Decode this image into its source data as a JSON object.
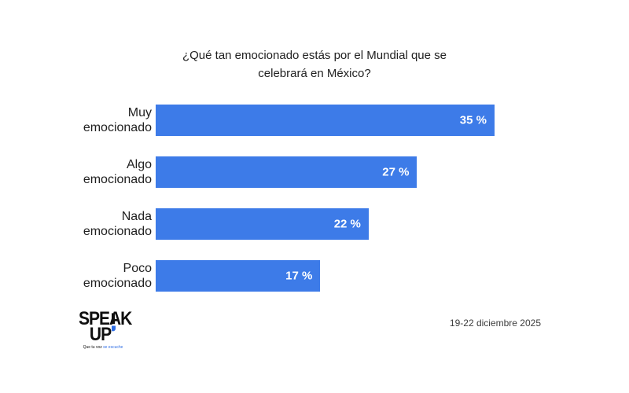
{
  "chart_data": {
    "type": "bar",
    "orientation": "horizontal",
    "title": "¿Qué tan emocionado estás por el Mundial que se celebrará en México?",
    "categories": [
      "Muy emocionado",
      "Algo emocionado",
      "Nada emocionado",
      "Poco emocionado"
    ],
    "values": [
      35,
      27,
      22,
      17
    ],
    "value_labels": [
      "35 %",
      "27 %",
      "22 %",
      "17 %"
    ],
    "bar_color": "#3d7be8",
    "value_label_color": "#ffffff",
    "xlim": [
      0,
      35
    ],
    "grid": "off",
    "legend": "none"
  },
  "footer": {
    "logo": {
      "line1": "SPEAK",
      "line2": "UP",
      "tagline_black": "Que tu voz ",
      "tagline_blue": "se escuche"
    },
    "date": "19-22 diciembre 2025"
  }
}
